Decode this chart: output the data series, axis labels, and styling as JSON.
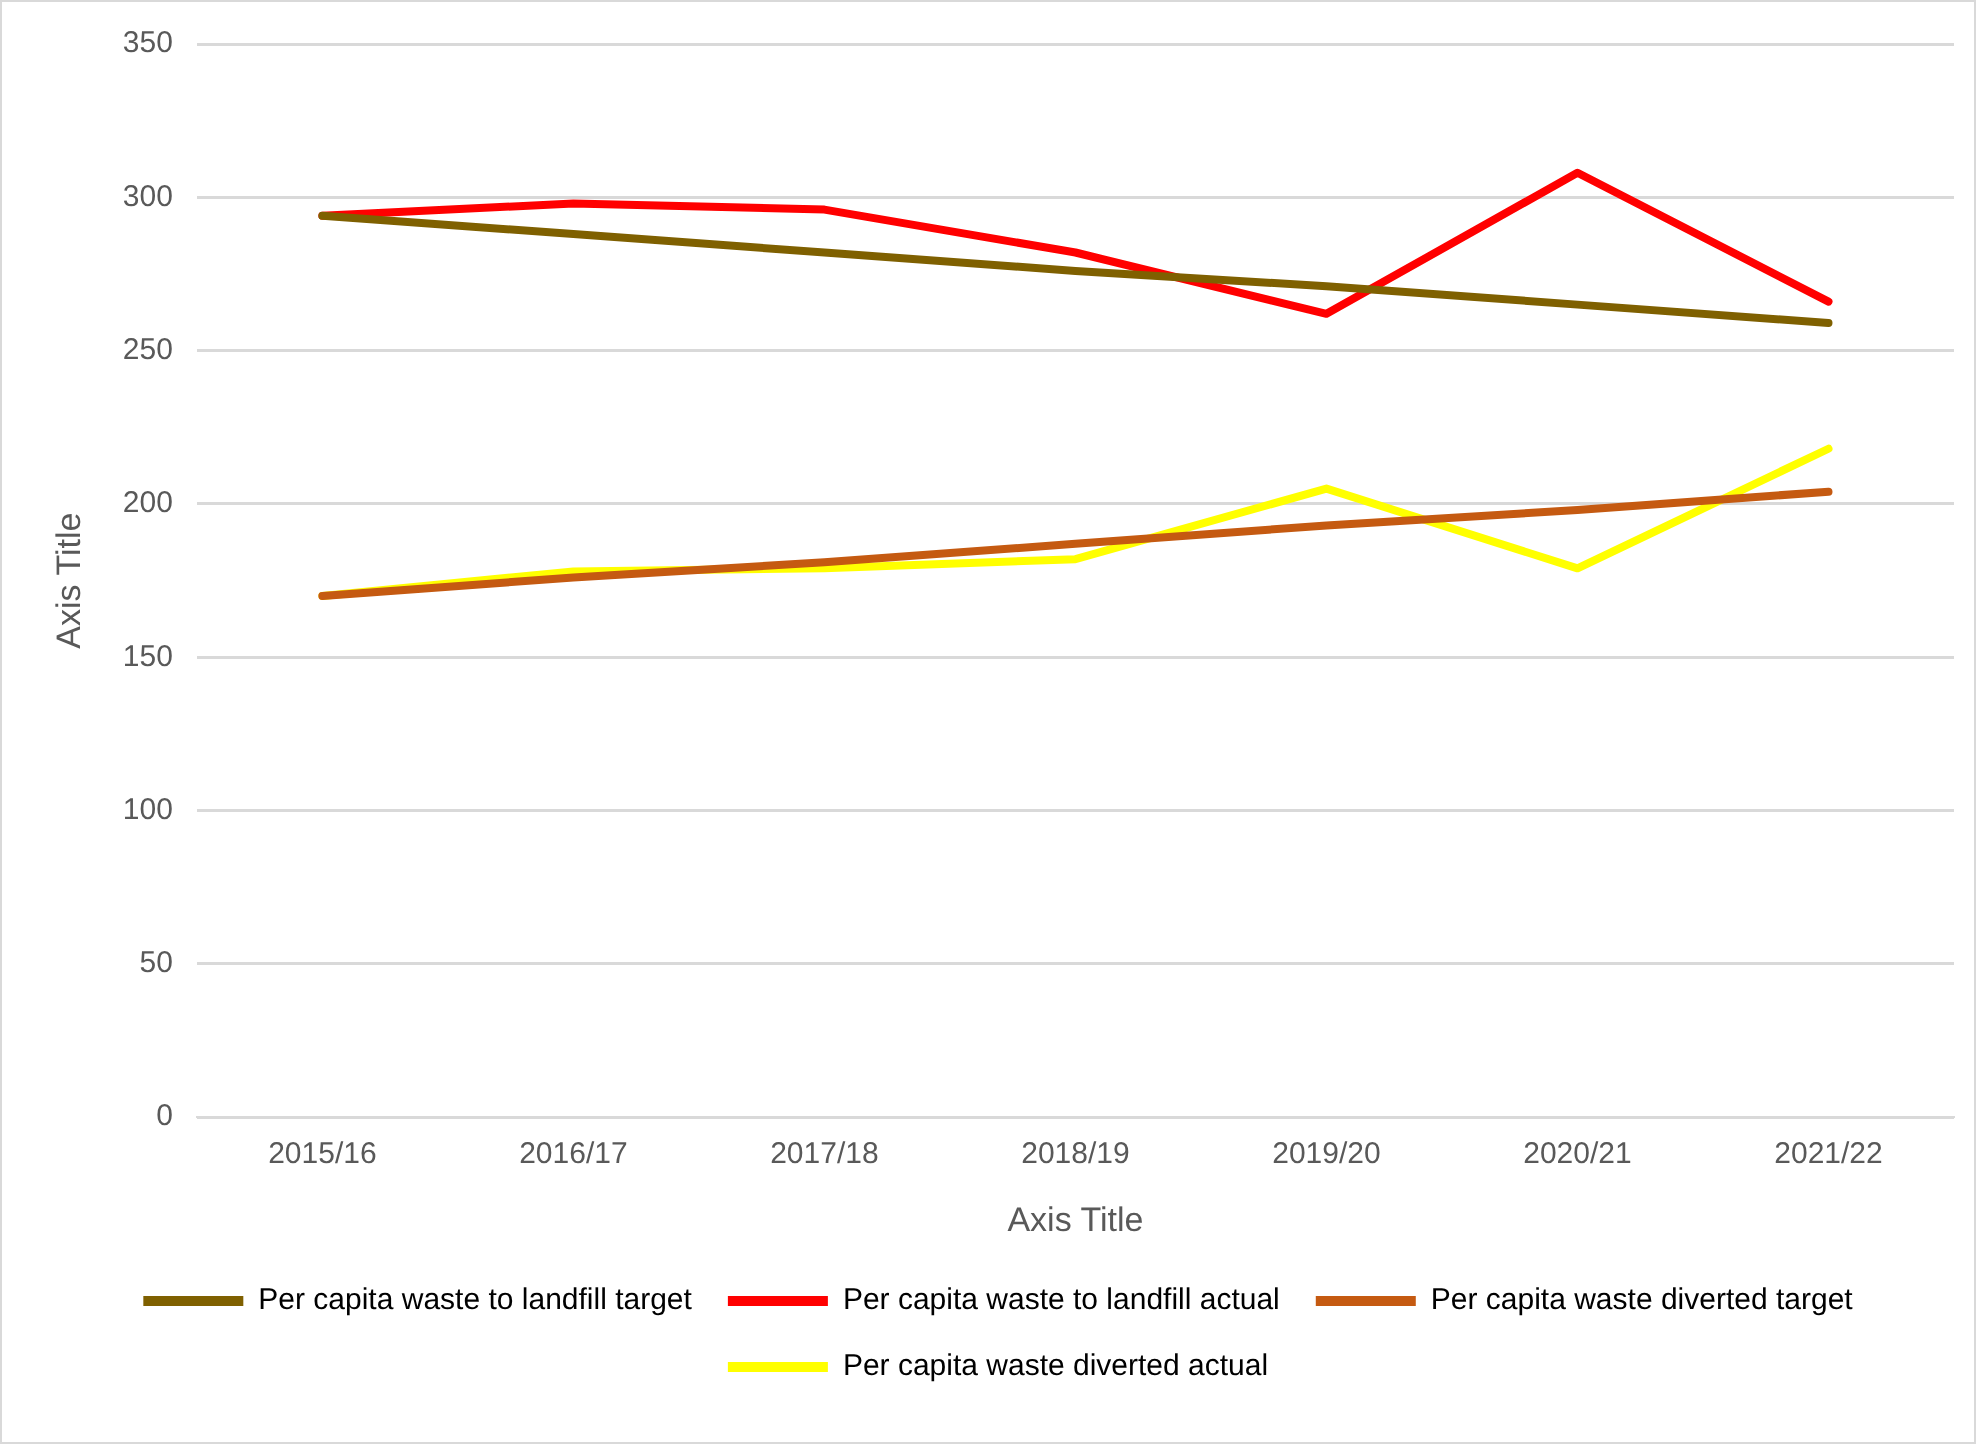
{
  "chart_data": {
    "type": "line",
    "xlabel": "Axis Title",
    "ylabel": "Axis Title",
    "categories": [
      "2015/16",
      "2016/17",
      "2017/18",
      "2018/19",
      "2019/20",
      "2020/21",
      "2021/22"
    ],
    "series": [
      {
        "name": "Per capita waste to landfill target",
        "color": "#7f6000",
        "values": [
          294,
          288,
          282,
          276,
          271,
          265,
          259
        ]
      },
      {
        "name": "Per capita waste to landfill actual",
        "color": "#ff0000",
        "values": [
          294,
          298,
          296,
          282,
          262,
          308,
          266
        ]
      },
      {
        "name": "Per capita waste diverted target",
        "color": "#c55a11",
        "values": [
          170,
          176,
          181,
          187,
          193,
          198,
          204
        ]
      },
      {
        "name": "Per capita waste diverted actual",
        "color": "#ffff00",
        "values": [
          170,
          178,
          179,
          182,
          205,
          179,
          218
        ]
      }
    ],
    "ylim": [
      0,
      350
    ],
    "yticks": [
      0,
      50,
      100,
      150,
      200,
      250,
      300,
      350
    ],
    "grid": "y",
    "legend": "bottom",
    "marker": "none",
    "line_style": "solid"
  }
}
